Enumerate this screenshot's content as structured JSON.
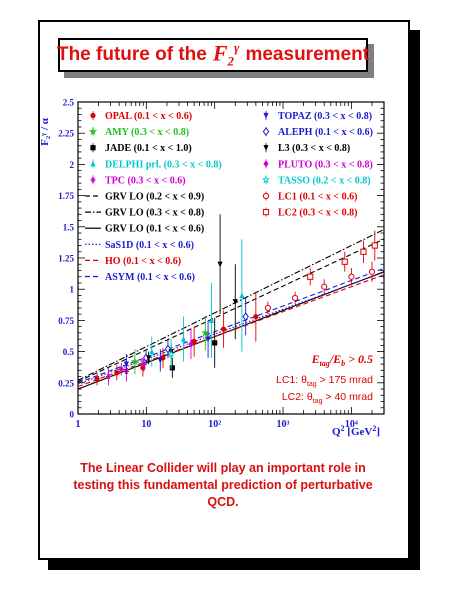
{
  "title": {
    "prefix": "The future of the",
    "math": "F₂^γ",
    "suffix": "measurement"
  },
  "caption": [
    "The Linear Collider will play an important role in",
    "testing this fundamental prediction of perturbative",
    "QCD."
  ],
  "chart_data": {
    "type": "scatter",
    "xscale": "log",
    "xlim": [
      1,
      30000
    ],
    "ylim": [
      0,
      2.5
    ],
    "xlabel": "Q² [GeV²]",
    "ylabel": "F₂^γ / α",
    "x_ticks": [
      "1",
      "10",
      "10²",
      "10³",
      "10⁴"
    ],
    "y_ticks": [
      "0",
      "0.25",
      "0.5",
      "0.75",
      "1",
      "1.25",
      "1.5",
      "1.75",
      "2",
      "2.25",
      "2.5"
    ],
    "legend_left": [
      {
        "label": "OPAL (0.1 < x < 0.6)",
        "color": "#e00000",
        "marker": "dot"
      },
      {
        "label": "AMY (0.3 < x < 0.8)",
        "color": "#20c020",
        "marker": "star"
      },
      {
        "label": "JADE (0.1 < x < 1.0)",
        "color": "#000000",
        "marker": "square"
      },
      {
        "label": "DELPHI prl. (0.3 < x < 0.8)",
        "color": "#00c8d0",
        "marker": "triangle"
      },
      {
        "label": "TPC (0.3 < x < 0.6)",
        "color": "#d000d0",
        "marker": "asterisk"
      },
      {
        "label": "GRV LO (0.2 < x < 0.9)",
        "color": "#000000",
        "marker": "line-dashed"
      },
      {
        "label": "GRV LO (0.3 < x < 0.8)",
        "color": "#000000",
        "marker": "line-dashdot"
      },
      {
        "label": "GRV LO (0.1 < x < 0.6)",
        "color": "#000000",
        "marker": "line-solid"
      },
      {
        "label": "SaS1D (0.1 < x < 0.6)",
        "color": "#1a1ad0",
        "marker": "line-dotted"
      },
      {
        "label": "HO (0.1 < x < 0.6)",
        "color": "#e00000",
        "marker": "line-dashed"
      },
      {
        "label": "ASYM (0.1 < x < 0.6)",
        "color": "#1a1ad0",
        "marker": "line-dashed"
      }
    ],
    "legend_right": [
      {
        "label": "TOPAZ (0.3 < x < 0.8)",
        "color": "#1a1ad0",
        "marker": "tri-down"
      },
      {
        "label": "ALEPH (0.1 < x < 0.6)",
        "color": "#1a1ad0",
        "marker": "diamond-open"
      },
      {
        "label": "L3 (0.3 < x < 0.8)",
        "color": "#000000",
        "marker": "tri-down"
      },
      {
        "label": "PLUTO (0.3 < x < 0.8)",
        "color": "#d000d0",
        "marker": "diamond"
      },
      {
        "label": "TASSO (0.2 < x < 0.8)",
        "color": "#00c8d0",
        "marker": "star-open"
      },
      {
        "label": "LC1 (0.1 < x < 0.6)",
        "color": "#e00000",
        "marker": "circle-open"
      },
      {
        "label": "LC2 (0.3 < x < 0.8)",
        "color": "#e00000",
        "marker": "square-open"
      }
    ],
    "annotations": [
      {
        "text": "E_tag / E_b > 0.5",
        "color": "#e00000"
      },
      {
        "text": "LC1: θ_tag > 175 mrad",
        "color": "#e00000"
      },
      {
        "text": "LC2: θ_tag >  40 mrad",
        "color": "#e00000"
      }
    ],
    "series": [
      {
        "name": "OPAL (0.1 < x < 0.6)",
        "color": "#e00000",
        "marker": "dot",
        "points": [
          [
            1.9,
            0.28,
            0.05
          ],
          [
            3.7,
            0.33,
            0.06
          ],
          [
            8.9,
            0.37,
            0.07
          ],
          [
            17.5,
            0.45,
            0.08
          ],
          [
            50,
            0.58,
            0.12
          ],
          [
            135,
            0.68,
            0.15
          ],
          [
            400,
            0.78,
            0.2
          ]
        ]
      },
      {
        "name": "AMY (0.3 < x < 0.8)",
        "color": "#20c020",
        "marker": "star",
        "points": [
          [
            6.8,
            0.42,
            0.1
          ],
          [
            73,
            0.65,
            0.14
          ]
        ]
      },
      {
        "name": "JADE (0.1 < x < 1.0)",
        "color": "#000000",
        "marker": "square",
        "points": [
          [
            24,
            0.37,
            0.08
          ],
          [
            100,
            0.57,
            0.2
          ]
        ]
      },
      {
        "name": "DELPHI prl. (0.3 < x < 0.8)",
        "color": "#00c8d0",
        "marker": "triangle",
        "points": [
          [
            12,
            0.5,
            0.12
          ],
          [
            35,
            0.6,
            0.18
          ],
          [
            90,
            0.75,
            0.3
          ],
          [
            250,
            0.95,
            0.45
          ]
        ]
      },
      {
        "name": "TPC (0.3 < x < 0.6)",
        "color": "#d000d0",
        "marker": "asterisk",
        "points": [
          [
            2.8,
            0.3,
            0.07
          ],
          [
            5.1,
            0.34,
            0.08
          ]
        ]
      },
      {
        "name": "TOPAZ (0.3 < x < 0.8)",
        "color": "#1a1ad0",
        "marker": "tri-down",
        "points": [
          [
            5.1,
            0.4,
            0.08
          ],
          [
            16,
            0.43,
            0.09
          ],
          [
            80,
            0.6,
            0.15
          ]
        ]
      },
      {
        "name": "ALEPH (0.1 < x < 0.6)",
        "color": "#1a1ad0",
        "marker": "diamond-open",
        "points": [
          [
            9.9,
            0.45,
            0.06
          ],
          [
            20.7,
            0.52,
            0.07
          ],
          [
            284,
            0.78,
            0.15
          ]
        ]
      },
      {
        "name": "L3 (0.3 < x < 0.8)",
        "color": "#000000",
        "marker": "tri-down",
        "points": [
          [
            10.8,
            0.45,
            0.05
          ],
          [
            23.1,
            0.5,
            0.06
          ],
          [
            120,
            1.2,
            0.4
          ],
          [
            200,
            0.9,
            0.3
          ]
        ]
      },
      {
        "name": "PLUTO (0.3 < x < 0.8)",
        "color": "#d000d0",
        "marker": "diamond",
        "points": [
          [
            4.3,
            0.36,
            0.05
          ],
          [
            9.2,
            0.4,
            0.06
          ],
          [
            45,
            0.56,
            0.12
          ]
        ]
      },
      {
        "name": "TASSO (0.2 < x < 0.8)",
        "color": "#00c8d0",
        "marker": "star-open",
        "points": [
          [
            23,
            0.48,
            0.12
          ]
        ]
      },
      {
        "name": "LC1 (0.1 < x < 0.6)",
        "color": "#e00000",
        "marker": "circle-open",
        "points": [
          [
            600,
            0.85,
            0.05
          ],
          [
            1500,
            0.93,
            0.05
          ],
          [
            4000,
            1.02,
            0.06
          ],
          [
            10000,
            1.1,
            0.07
          ],
          [
            20000,
            1.14,
            0.08
          ]
        ]
      },
      {
        "name": "LC2 (0.3 < x < 0.8)",
        "color": "#e00000",
        "marker": "square-open",
        "points": [
          [
            2500,
            1.1,
            0.07
          ],
          [
            8000,
            1.22,
            0.08
          ],
          [
            15000,
            1.3,
            0.09
          ],
          [
            22000,
            1.35,
            0.12
          ]
        ]
      }
    ],
    "curves": [
      {
        "name": "GRV LO (0.2 < x < 0.9)",
        "color": "#000000",
        "style": "dashed",
        "a": 0.26,
        "b": 0.255
      },
      {
        "name": "GRV LO (0.3 < x < 0.8)",
        "color": "#000000",
        "style": "dashdot",
        "a": 0.27,
        "b": 0.27
      },
      {
        "name": "GRV LO (0.1 < x < 0.6)",
        "color": "#000000",
        "style": "solid",
        "a": 0.2,
        "b": 0.21
      },
      {
        "name": "SaS1D (0.1 < x < 0.6)",
        "color": "#1a1ad0",
        "style": "dotted",
        "a": 0.24,
        "b": 0.2
      },
      {
        "name": "HO (0.1 < x < 0.6)",
        "color": "#e00000",
        "style": "dashed",
        "a": 0.22,
        "b": 0.2
      },
      {
        "name": "ASYM (0.1 < x < 0.6)",
        "color": "#1a1ad0",
        "style": "dashed",
        "a": 0.25,
        "b": 0.205
      }
    ]
  }
}
